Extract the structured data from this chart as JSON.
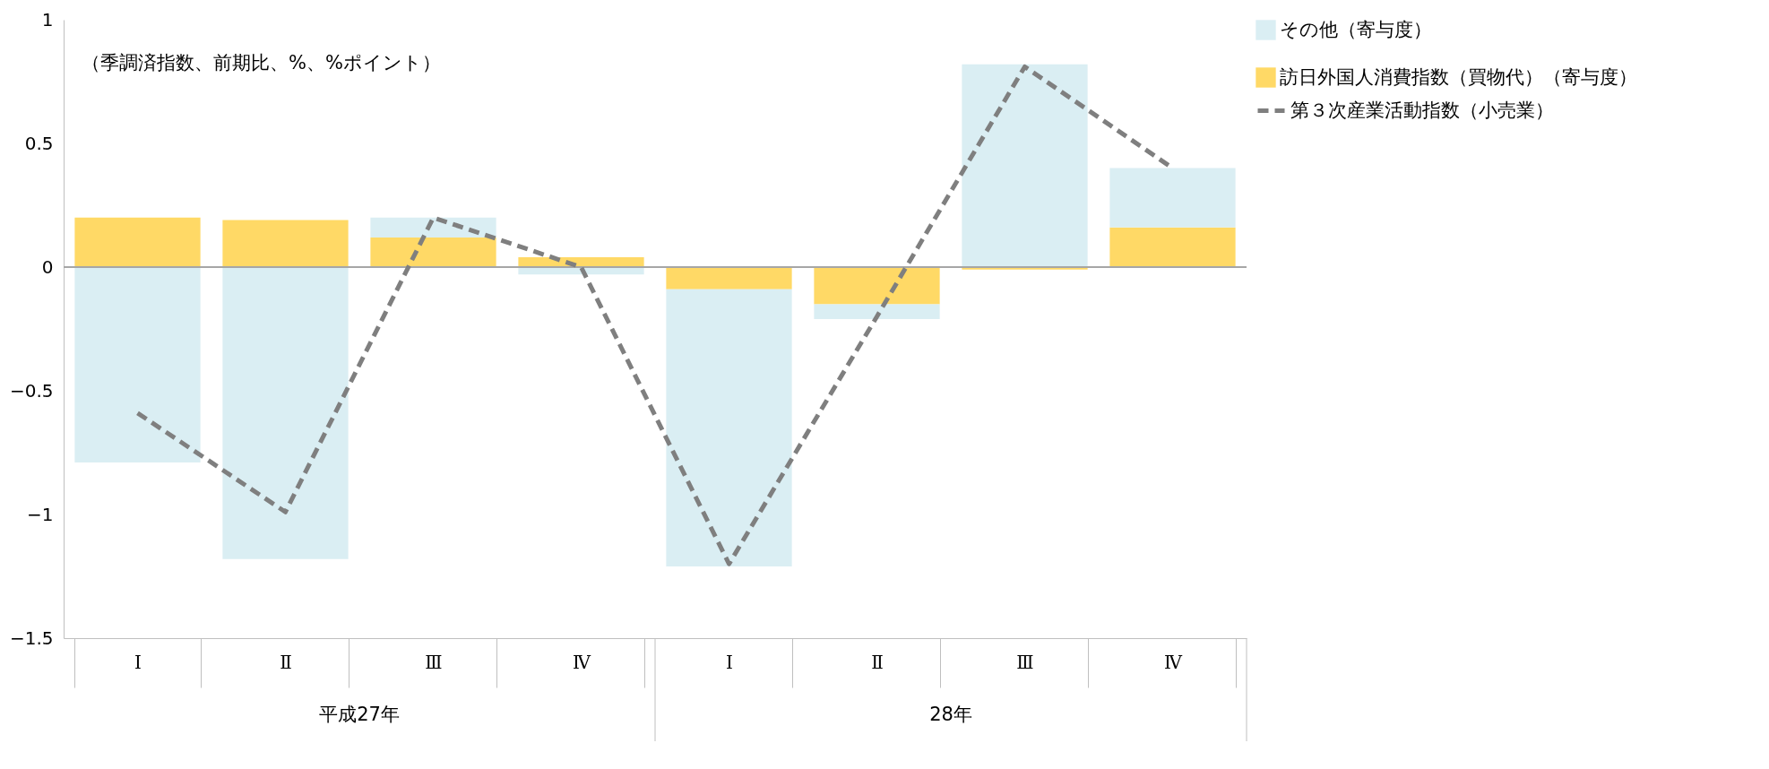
{
  "chart_data": {
    "type": "bar",
    "stacked": true,
    "categories": [
      "Ⅰ",
      "Ⅱ",
      "Ⅲ",
      "Ⅳ",
      "Ⅰ",
      "Ⅱ",
      "Ⅲ",
      "Ⅳ"
    ],
    "series": [
      {
        "name": "訪日外国人消費指数（買物代）（寄与度）",
        "color": "#ffd966",
        "values": [
          0.2,
          0.19,
          0.12,
          0.04,
          -0.09,
          -0.15,
          -0.01,
          0.16
        ]
      },
      {
        "name": "その他（寄与度）",
        "color": "#daeef3",
        "values": [
          -0.79,
          -1.18,
          0.08,
          -0.03,
          -1.12,
          -0.06,
          0.82,
          0.24
        ]
      },
      {
        "name": "第３次産業活動指数（小売業）",
        "type": "line",
        "color": "#7f7f7f",
        "line_style": "dashed",
        "values": [
          -0.59,
          -0.99,
          0.2,
          0.0,
          -1.2,
          -0.2,
          0.81,
          0.4
        ]
      }
    ],
    "ylim": [
      -1.5,
      1
    ],
    "yticks": [
      -1.5,
      -1,
      -0.5,
      0,
      0.5,
      1
    ],
    "ref_lines": [
      {
        "axis": "y",
        "value": 0,
        "color": "#a6a6a6"
      }
    ],
    "annotations": [
      "（季調済指数、前期比、%、%ポイント）",
      "平成27年",
      "28年"
    ],
    "grid": false,
    "legend": "right",
    "marker": "none"
  }
}
